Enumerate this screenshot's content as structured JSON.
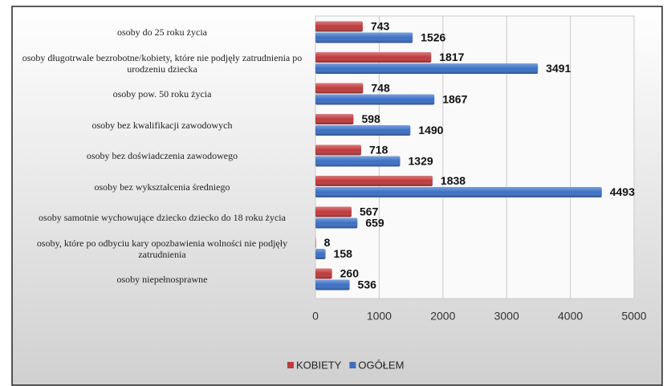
{
  "chart_data": {
    "type": "bar",
    "orientation": "horizontal",
    "categories": [
      "osoby do 25 roku życia",
      "osoby długotrwale bezrobotne/kobiety, które nie podjęły zatrudnienia po urodzeniu dziecka",
      "osoby pow. 50 roku życia",
      "osoby bez kwalifikacji zawodowych",
      "osoby bez doświadczenia zawodowego",
      "osoby bez wykształcenia średniego",
      "osoby samotnie wychowujące dziecko dziecko do 18 roku życia",
      "osoby, które po odbyciu kary opozbawienia wolności nie podjęły zatrudnienia",
      "osoby niepełnosprawne"
    ],
    "series": [
      {
        "name": "KOBIETY",
        "color": "#c0393b",
        "values": [
          743,
          1817,
          748,
          598,
          718,
          1838,
          567,
          8,
          260
        ]
      },
      {
        "name": "OGÓŁEM",
        "color": "#3a6fc4",
        "values": [
          1526,
          3491,
          1867,
          1490,
          1329,
          4493,
          659,
          158,
          536
        ]
      }
    ],
    "xlim": [
      0,
      5000
    ],
    "xticks": [
      0,
      1000,
      2000,
      3000,
      4000,
      5000
    ],
    "grid": true,
    "legend": "bottom"
  }
}
